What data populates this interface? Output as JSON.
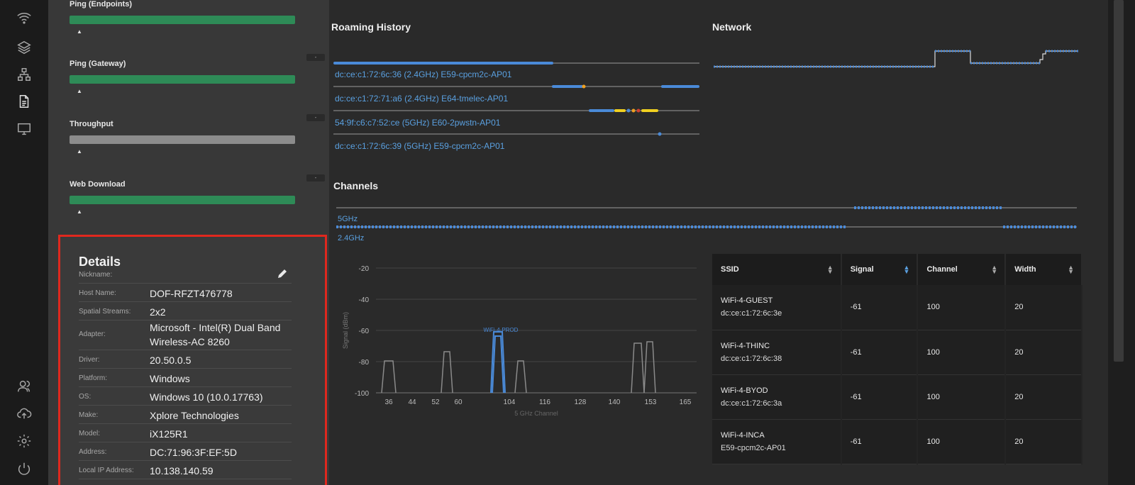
{
  "rail": {
    "icons": [
      "wifi-icon",
      "layers-icon",
      "network-icon",
      "document-icon",
      "monitor-icon",
      "users-icon",
      "cloud-upload-icon",
      "settings-icon",
      "power-icon"
    ]
  },
  "metrics": [
    {
      "title": "Ping (Endpoints)",
      "status": "good",
      "toggle": "-"
    },
    {
      "title": "Ping (Gateway)",
      "status": "good",
      "toggle": "-"
    },
    {
      "title": "Throughput",
      "status": "none",
      "toggle": "-"
    },
    {
      "title": "Web Download",
      "status": "good",
      "toggle": "-"
    }
  ],
  "details": {
    "title": "Details",
    "rows": [
      {
        "label": "Nickname:",
        "value": ""
      },
      {
        "label": "Host Name:",
        "value": "DOF-RFZT476778"
      },
      {
        "label": "Spatial Streams:",
        "value": "2x2"
      },
      {
        "label": "Adapter:",
        "value": "Microsoft - Intel(R) Dual Band Wireless-AC 8260"
      },
      {
        "label": "Driver:",
        "value": "20.50.0.5"
      },
      {
        "label": "Platform:",
        "value": "Windows"
      },
      {
        "label": "OS:",
        "value": "Windows 10 (10.0.17763)"
      },
      {
        "label": "Make:",
        "value": "Xplore Technologies"
      },
      {
        "label": "Model:",
        "value": "iX125R1"
      },
      {
        "label": "Address:",
        "value": "DC:71:96:3F:EF:5D"
      },
      {
        "label": "Local IP Address:",
        "value": "10.138.140.59"
      }
    ]
  },
  "roaming": {
    "title": "Roaming History",
    "aps": [
      "dc:ce:c1:72:6c:36 (2.4GHz) E59-cpcm2c-AP01",
      "dc:ce:c1:72:71:a6 (2.4GHz) E64-tmelec-AP01",
      "54:9f:c6:c7:52:ce (5GHz) E60-2pwstn-AP01",
      "dc:ce:c1:72:6c:39 (5GHz) E59-cpcm2c-AP01"
    ]
  },
  "network": {
    "title": "Network"
  },
  "channels": {
    "title": "Channels",
    "bands": [
      "5GHz",
      "2.4GHz"
    ]
  },
  "spectrum": {
    "ylabel": "Signal (dBm)",
    "xlabel": "5 GHz Channel",
    "yticks": [
      "-20",
      "-40",
      "-60",
      "-80",
      "-100"
    ],
    "xticks": [
      "36",
      "44",
      "52",
      "60",
      "104",
      "116",
      "128",
      "140",
      "153",
      "165"
    ],
    "highlight_label": "WiFi-4-PROD"
  },
  "table": {
    "columns": [
      "SSID",
      "Signal",
      "Channel",
      "Width"
    ],
    "rows": [
      {
        "ssid": "WiFi-4-GUEST",
        "bssid": "dc:ce:c1:72:6c:3e",
        "signal": "-61",
        "channel": "100",
        "width": "20"
      },
      {
        "ssid": "WiFi-4-THINC",
        "bssid": "dc:ce:c1:72:6c:38",
        "signal": "-61",
        "channel": "100",
        "width": "20"
      },
      {
        "ssid": "WiFi-4-BYOD",
        "bssid": "dc:ce:c1:72:6c:3a",
        "signal": "-61",
        "channel": "100",
        "width": "20"
      },
      {
        "ssid": "WiFi-4-INCA",
        "bssid": "E59-cpcm2c-AP01",
        "signal": "-61",
        "channel": "100",
        "width": "20"
      }
    ]
  },
  "colors": {
    "accent_blue": "#5aa0e0",
    "good_green": "#2e8b57",
    "highlight_red": "#e0281e",
    "dot_orange": "#f0a020",
    "dot_yellow": "#f0d020"
  }
}
